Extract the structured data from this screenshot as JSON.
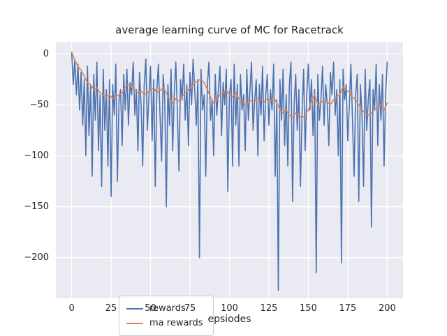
{
  "chart_data": {
    "type": "line",
    "title": "average learning curve of MC for Racetrack",
    "xlabel": "epsiodes",
    "ylabel": "",
    "xlim": [
      -10,
      210
    ],
    "ylim": [
      -240,
      12
    ],
    "xticks": [
      0,
      25,
      50,
      75,
      100,
      125,
      150,
      175,
      200
    ],
    "yticks": [
      0,
      -50,
      -100,
      -150,
      -200
    ],
    "grid": true,
    "grid_color": "#ffffff",
    "plot_background": "#eaeaf2",
    "legend_position": "lower left",
    "series": [
      {
        "name": "rewards",
        "color": "#4c72b0",
        "x_start": 0,
        "x_step": 1,
        "values": [
          2,
          -30,
          -6,
          -40,
          -10,
          -55,
          -18,
          -70,
          -25,
          -100,
          -12,
          -80,
          -30,
          -120,
          -20,
          -65,
          -8,
          -95,
          -40,
          -130,
          -15,
          -75,
          -35,
          -110,
          -25,
          -140,
          -30,
          -60,
          -10,
          -125,
          -45,
          -35,
          -90,
          -20,
          -55,
          -15,
          -70,
          -28,
          -40,
          -8,
          -60,
          -35,
          -95,
          -18,
          -50,
          -110,
          -30,
          -5,
          -75,
          -40,
          -12,
          -85,
          -25,
          -130,
          -35,
          -10,
          -60,
          -105,
          -20,
          -45,
          -150,
          -30,
          -70,
          -15,
          -95,
          -40,
          -8,
          -55,
          -115,
          -25,
          -45,
          -10,
          -65,
          -30,
          -90,
          -18,
          -50,
          -5,
          -35,
          -70,
          -25,
          -200,
          -15,
          -55,
          -40,
          -120,
          -30,
          -8,
          -65,
          -45,
          -100,
          -20,
          -60,
          -35,
          -12,
          -80,
          -28,
          -50,
          -15,
          -135,
          -40,
          -25,
          -110,
          -10,
          -70,
          -30,
          -110,
          -20,
          -55,
          -40,
          -95,
          -15,
          -65,
          -35,
          -8,
          -75,
          -45,
          -25,
          -100,
          -30,
          -60,
          -12,
          -85,
          -40,
          -20,
          -70,
          -35,
          -55,
          -10,
          -120,
          -45,
          -232,
          -25,
          -65,
          -15,
          -90,
          -40,
          -110,
          -30,
          -8,
          -145,
          -50,
          -20,
          -75,
          -35,
          -130,
          -60,
          -15,
          -95,
          -40,
          -10,
          -55,
          -25,
          -80,
          -35,
          -215,
          -20,
          -65,
          -45,
          -12,
          -70,
          -30,
          -50,
          -90,
          -18,
          -40,
          -8,
          -60,
          -35,
          -100,
          -25,
          -205,
          -15,
          -45,
          -30,
          -85,
          -50,
          -10,
          -65,
          -120,
          -40,
          -20,
          -145,
          -30,
          -60,
          -130,
          -15,
          -75,
          -45,
          -25,
          -170,
          -35,
          -55,
          -10,
          -90,
          -30,
          -65,
          -20,
          -110,
          -40,
          -8
        ]
      },
      {
        "name": "ma rewards",
        "color": "#dd8452",
        "x_start": 0,
        "x_step": 2,
        "values": [
          2,
          -6,
          -12,
          -16,
          -22,
          -28,
          -30,
          -35,
          -33,
          -38,
          -40,
          -42,
          -40,
          -44,
          -42,
          -40,
          -38,
          -32,
          -30,
          -33,
          -35,
          -38,
          -36,
          -40,
          -38,
          -35,
          -33,
          -38,
          -36,
          -33,
          -38,
          -45,
          -48,
          -44,
          -46,
          -42,
          -38,
          -35,
          -32,
          -28,
          -26,
          -25,
          -28,
          -35,
          -42,
          -48,
          -45,
          -40,
          -38,
          -35,
          -40,
          -42,
          -38,
          -44,
          -46,
          -50,
          -48,
          -45,
          -46,
          -44,
          -45,
          -47,
          -44,
          -46,
          -43,
          -48,
          -55,
          -58,
          -55,
          -60,
          -62,
          -58,
          -60,
          -63,
          -60,
          -55,
          -45,
          -40,
          -50,
          -48,
          -45,
          -47,
          -50,
          -45,
          -42,
          -40,
          -32,
          -35,
          -38,
          -42,
          -45,
          -50,
          -55,
          -58,
          -60,
          -58,
          -55,
          -52,
          -50,
          -55,
          -48
        ]
      }
    ]
  }
}
